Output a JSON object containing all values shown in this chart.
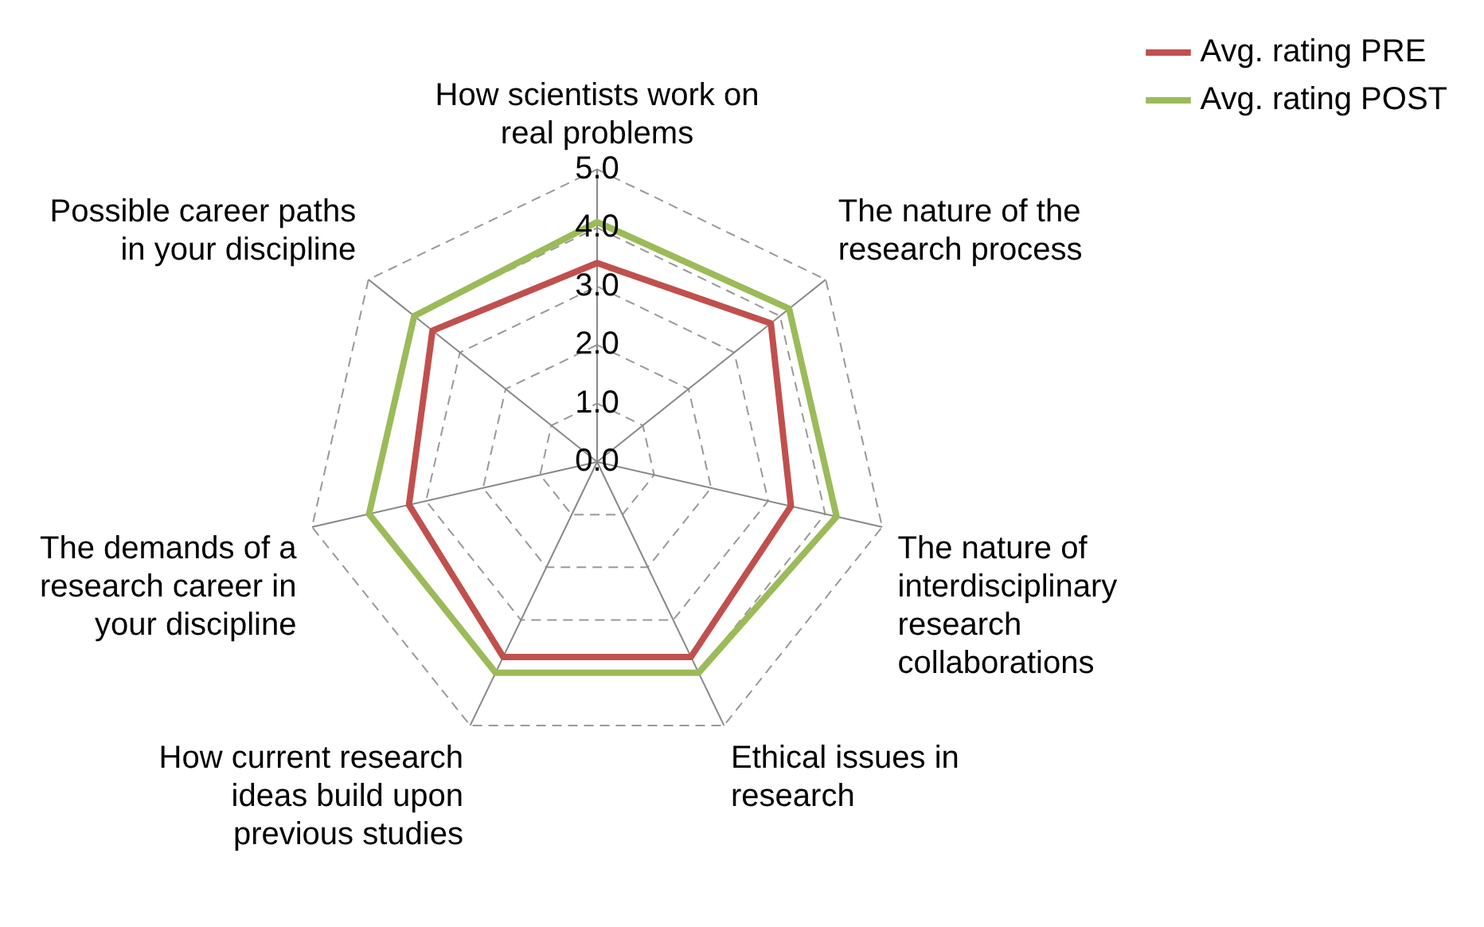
{
  "chart_data": {
    "type": "radar",
    "categories": [
      "How scientists work on real problems",
      "The nature of the research process",
      "The nature of interdisciplinary research collaborations",
      "Ethical issues in research",
      "How current research ideas build upon previous studies",
      "The demands of a research career in your discipline",
      "Possible career paths in your discipline"
    ],
    "series": [
      {
        "name": "Avg. rating PRE",
        "color": "#c0504d",
        "values": [
          3.4,
          3.8,
          3.4,
          3.7,
          3.7,
          3.3,
          3.6
        ]
      },
      {
        "name": "Avg. rating POST",
        "color": "#9bbb59",
        "values": [
          4.1,
          4.2,
          4.2,
          4.0,
          4.0,
          4.0,
          4.0
        ]
      }
    ],
    "ylim": [
      0,
      5
    ],
    "yticks": [
      {
        "value": 0,
        "label": "0.0"
      },
      {
        "value": 1,
        "label": "1.0"
      },
      {
        "value": 2,
        "label": "2.0"
      },
      {
        "value": 3,
        "label": "3.0"
      },
      {
        "value": 4,
        "label": "4.0"
      },
      {
        "value": 5,
        "label": "5.0"
      }
    ],
    "grid": true,
    "legend": "top right",
    "marker": "none",
    "line_style": "solid"
  }
}
